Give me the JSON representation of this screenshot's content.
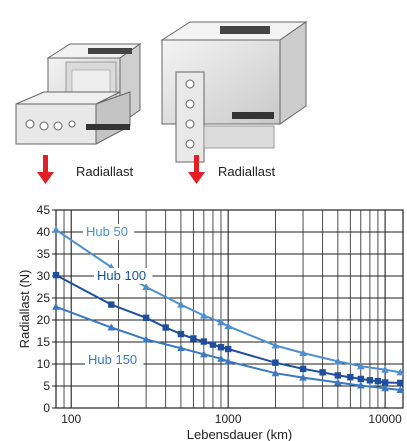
{
  "arrow_labels": [
    "Radiallast",
    "Radiallast"
  ],
  "colors": {
    "arrow": "#e31e24",
    "hub50": "#4f8fcf",
    "hub100": "#1f4f9c",
    "hub150": "#3a78c2",
    "grid": "#222222",
    "device_body": "#e6e6e6",
    "device_edge": "#555555"
  },
  "chart_data": {
    "type": "line",
    "title": "",
    "xlabel": "Lebensdauer (km)",
    "ylabel": "Radiallast (N)",
    "xscale": "log",
    "xlim": [
      80,
      13000
    ],
    "ylim": [
      0,
      45
    ],
    "xticks": [
      100,
      1000,
      10000
    ],
    "xtick_labels": [
      "100",
      "1000",
      "10000"
    ],
    "yticks": [
      0,
      5,
      10,
      15,
      20,
      25,
      30,
      35,
      40,
      45
    ],
    "ytick_labels": [
      "0",
      "5",
      "10",
      "15",
      "20",
      "25",
      "30",
      "35",
      "40",
      "45"
    ],
    "grid": true,
    "series": [
      {
        "name": "Hub 50",
        "marker": "triangle",
        "x": [
          80,
          180,
          300,
          500,
          700,
          900,
          1000,
          2000,
          3000,
          5000,
          7000,
          10000,
          12500
        ],
        "y": [
          40.5,
          32,
          27.5,
          23.5,
          21,
          19.5,
          18.6,
          14.2,
          12.5,
          10.6,
          9.5,
          8.7,
          8.1
        ]
      },
      {
        "name": "Hub 100",
        "marker": "square",
        "x": [
          80,
          180,
          300,
          400,
          500,
          600,
          700,
          800,
          900,
          1000,
          2000,
          3000,
          4000,
          5000,
          6000,
          7000,
          8000,
          9000,
          10000,
          12500
        ],
        "y": [
          30.2,
          23.5,
          20.5,
          18.3,
          16.8,
          15.8,
          15.1,
          14.4,
          13.8,
          13.4,
          10.3,
          8.9,
          8.1,
          7.4,
          7,
          6.6,
          6.3,
          6.1,
          5.8,
          5.7
        ]
      },
      {
        "name": "Hub 150",
        "marker": "triangle",
        "x": [
          80,
          180,
          300,
          500,
          700,
          900,
          1000,
          2000,
          3000,
          5000,
          7000,
          10000,
          12500
        ],
        "y": [
          23,
          18.3,
          15.6,
          13.6,
          12.2,
          11.2,
          10.6,
          7.9,
          6.9,
          5.8,
          5.1,
          4.5,
          4.1
        ]
      }
    ]
  }
}
